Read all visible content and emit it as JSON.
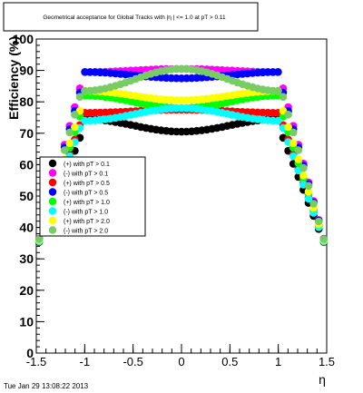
{
  "chart_data": {
    "type": "scatter",
    "title": "Geometrical acceptance for Global Tracks with |η | <= 1.0 at pT > 0.11",
    "xlabel": "η",
    "ylabel": "Efficiency (%)",
    "xlim": [
      -1.5,
      1.5
    ],
    "ylim": [
      0,
      100
    ],
    "x_ticks": [
      "-1.5",
      "-1",
      "-0.5",
      "0",
      "0.5",
      "1",
      "1.5"
    ],
    "y_ticks": [
      "0",
      "10",
      "20",
      "30",
      "40",
      "50",
      "60",
      "70",
      "80",
      "90",
      "100"
    ],
    "legend_position": "left-middle",
    "grid": false,
    "series": [
      {
        "name": "(+) with pT > 0.1",
        "color": "#000000",
        "plateau": 72.5,
        "center_dip": -2.0,
        "edge_drop": 0.3
      },
      {
        "name": "(-) with pT > 0.1",
        "color": "#ff00ff",
        "plateau": 90.0,
        "center_dip": 0.5,
        "edge_drop": 0.3
      },
      {
        "name": "(+) with pT > 0.5",
        "color": "#ff0000",
        "plateau": 77.0,
        "center_dip": 0.5,
        "edge_drop": 0.3
      },
      {
        "name": "(-) with pT > 0.5",
        "color": "#0000ff",
        "plateau": 88.5,
        "center_dip": -1.0,
        "edge_drop": 0.3
      },
      {
        "name": "(+) with pT > 1.0",
        "color": "#00ff00",
        "plateau": 80.0,
        "center_dip": -2.0,
        "edge_drop": 0.3
      },
      {
        "name": "(-) with pT > 1.0",
        "color": "#00ffff",
        "plateau": 76.0,
        "center_dip": 2.0,
        "edge_drop": 0.3
      },
      {
        "name": "(+) with pT > 2.0",
        "color": "#ffff00",
        "plateau": 82.0,
        "center_dip": -1.5,
        "edge_drop": 0.3
      },
      {
        "name": "(-) with pT > 2.0",
        "color": "#77cc66",
        "plateau": 87.0,
        "center_dip": 3.5,
        "edge_drop": 0.3
      }
    ]
  },
  "footer": {
    "timestamp": "Tue Jan 29 13:08:22 2013"
  }
}
